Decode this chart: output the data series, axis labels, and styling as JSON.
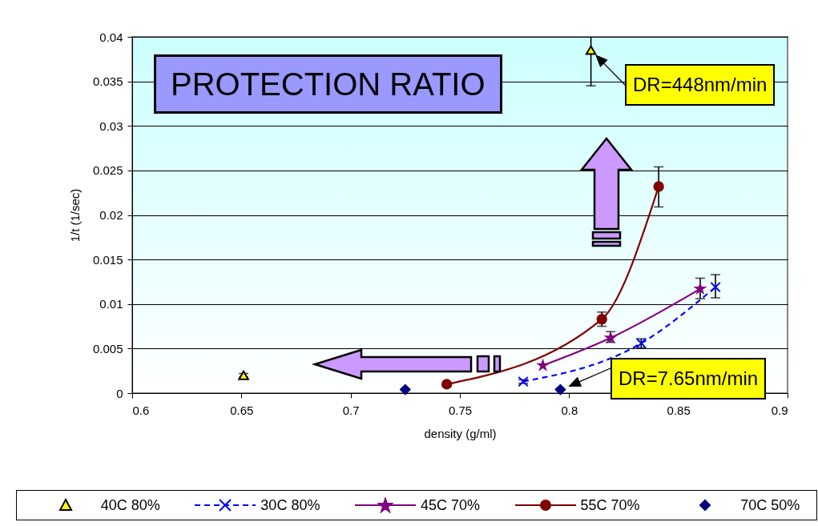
{
  "chart_data": {
    "type": "line",
    "xlabel": "density (g/ml)",
    "ylabel": "1/t (1/sec)",
    "xlim": [
      0.6,
      0.9
    ],
    "xticks": [
      0.6,
      0.65,
      0.7,
      0.75,
      0.8,
      0.85,
      0.9
    ],
    "ylim": [
      0,
      0.04
    ],
    "yticks": [
      0,
      0.005,
      0.01,
      0.015,
      0.02,
      0.025,
      0.03,
      0.035,
      0.04
    ],
    "grid": "y",
    "legend": "bottom",
    "annotations": [
      "PROTECTION RATIO",
      {
        "text": "DR=448nm/min",
        "x": 0.81,
        "y": 0.0385
      },
      "DR=7.65nm/min"
    ],
    "series": [
      {
        "name": "40C 80%",
        "type": "scatter",
        "color": "#ffff00",
        "marker": "triangle",
        "x": [
          0.651,
          0.81
        ],
        "values": [
          0.002,
          0.0385
        ],
        "errors": [
          0.0002,
          [
            0.0345,
            0.04
          ]
        ]
      },
      {
        "name": "30C 80%",
        "type": "line",
        "color": "#0000ff",
        "marker": "cross",
        "line_style": "dashed",
        "x": [
          0.779,
          0.833,
          0.867
        ],
        "values": [
          0.0013,
          0.0056,
          0.0119
        ],
        "errors": [
          0.0002,
          0.0005,
          [
            0.0107,
            0.0133
          ]
        ]
      },
      {
        "name": "45C 70%",
        "type": "line",
        "color": "#800080",
        "marker": "star",
        "line_style": "solid",
        "x": [
          0.788,
          0.819,
          0.86
        ],
        "values": [
          0.0031,
          0.0062,
          0.0117
        ],
        "errors": [
          null,
          [
            0.0057,
            0.0069
          ],
          [
            0.0106,
            0.0129
          ]
        ]
      },
      {
        "name": "55C 70%",
        "type": "line",
        "color": "#800000",
        "marker": "circle",
        "line_style": "solid",
        "x": [
          0.744,
          0.815,
          0.841
        ],
        "values": [
          0.001,
          0.0083,
          0.0232
        ],
        "errors": [
          null,
          [
            0.0075,
            0.0091
          ],
          [
            0.0209,
            0.0254
          ]
        ]
      },
      {
        "name": "70C 50%",
        "type": "scatter",
        "color": "#000080",
        "marker": "diamond",
        "x": [
          0.725,
          0.796
        ],
        "values": [
          0.0004,
          0.0004
        ],
        "errors": [
          0.0001,
          0.0001
        ]
      }
    ]
  }
}
